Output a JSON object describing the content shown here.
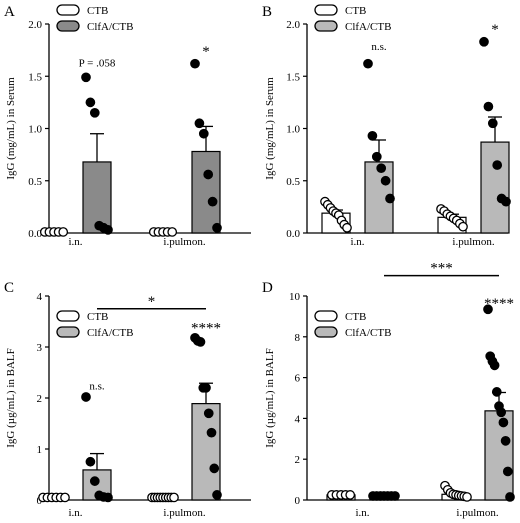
{
  "colors": {
    "ctb_fill": "#ffffff",
    "clfa_fill_A": "#8a8a8a",
    "clfa_fill_other": "#b9b9b9",
    "ink": "#000000"
  },
  "chart_data": [
    {
      "panel": "A",
      "type": "bar",
      "ylabel": "IgG (mg/mL) in Serum",
      "ylim": [
        0,
        2.0
      ],
      "yticks": [
        "0.0",
        "0.5",
        "1.0",
        "1.5",
        "2.0"
      ],
      "categories": [
        "i.n.",
        "i.pulmon."
      ],
      "legend": [
        "CTB",
        "ClfA/CTB"
      ],
      "series": [
        {
          "name": "CTB",
          "values": [
            0.0,
            0.0
          ],
          "sem": [
            0,
            0
          ],
          "points": [
            [
              0.01,
              0.01,
              0.01,
              0.01,
              0.01
            ],
            [
              0.01,
              0.01,
              0.01,
              0.01,
              0.01
            ]
          ]
        },
        {
          "name": "ClfA/CTB",
          "values": [
            0.68,
            0.78
          ],
          "sem": [
            0.27,
            0.24
          ],
          "points": [
            [
              1.49,
              1.25,
              1.15,
              0.07,
              0.05,
              0.03
            ],
            [
              1.62,
              1.05,
              0.95,
              0.56,
              0.3,
              0.05
            ]
          ]
        }
      ],
      "annotations": [
        {
          "text": "P = .058",
          "category": 0,
          "series": 1,
          "y": 1.63
        },
        {
          "text": "*",
          "category": 1,
          "series": 1,
          "y": 1.76
        }
      ]
    },
    {
      "panel": "B",
      "type": "bar",
      "ylabel": "IgG (mg/mL) in Serum",
      "ylim": [
        0,
        2.0
      ],
      "yticks": [
        "0.0",
        "0.5",
        "1.0",
        "1.5",
        "2.0"
      ],
      "categories": [
        "i.n.",
        "i.pulmon."
      ],
      "legend": [
        "CTB",
        "ClfA/CTB"
      ],
      "series": [
        {
          "name": "CTB",
          "values": [
            0.19,
            0.15
          ],
          "sem": [
            0.03,
            0.03
          ],
          "points": [
            [
              0.3,
              0.27,
              0.24,
              0.21,
              0.19,
              0.17,
              0.12,
              0.08,
              0.05
            ],
            [
              0.23,
              0.21,
              0.18,
              0.16,
              0.14,
              0.12,
              0.09,
              0.06
            ]
          ]
        },
        {
          "name": "ClfA/CTB",
          "values": [
            0.68,
            0.87
          ],
          "sem": [
            0.21,
            0.24
          ],
          "points": [
            [
              1.62,
              0.93,
              0.73,
              0.62,
              0.5,
              0.33
            ],
            [
              1.83,
              1.21,
              1.05,
              0.65,
              0.33,
              0.3
            ]
          ]
        }
      ],
      "annotations": [
        {
          "text": "n.s.",
          "category": 0,
          "series": 1,
          "y": 1.79
        },
        {
          "text": "*",
          "category": 1,
          "series": 1,
          "y": 1.97
        }
      ]
    },
    {
      "panel": "C",
      "type": "bar",
      "ylabel": "IgG (µg/mL) in BALF",
      "ylim": [
        0,
        4
      ],
      "yticks": [
        "0",
        "1",
        "2",
        "3",
        "4"
      ],
      "categories": [
        "i.n.",
        "i.pulmon."
      ],
      "legend": [
        "CTB",
        "ClfA/CTB"
      ],
      "series": [
        {
          "name": "CTB",
          "values": [
            0.05,
            0.05
          ],
          "sem": [
            0,
            0
          ],
          "points": [
            [
              0.05,
              0.05,
              0.05,
              0.05,
              0.05,
              0.05
            ],
            [
              0.05,
              0.05,
              0.05,
              0.05,
              0.05,
              0.05,
              0.05,
              0.05,
              0.05
            ]
          ]
        },
        {
          "name": "ClfA/CTB",
          "values": [
            0.59,
            1.89
          ],
          "sem": [
            0.32,
            0.4
          ],
          "points": [
            [
              2.02,
              0.75,
              0.37,
              0.09,
              0.06,
              0.05
            ],
            [
              3.18,
              3.12,
              3.1,
              2.2,
              2.2,
              1.7,
              1.32,
              0.62,
              0.1
            ]
          ]
        }
      ],
      "annotations": [
        {
          "text": "n.s.",
          "category": 0,
          "series": 1,
          "y": 2.25
        },
        {
          "text": "****",
          "category": 1,
          "series": 1,
          "y": 3.42
        }
      ],
      "bracket": {
        "from_category": 0,
        "to_category": 1,
        "series": 1,
        "y": 3.75,
        "text": "*"
      }
    },
    {
      "panel": "D",
      "type": "bar",
      "ylabel": "IgG (µg/mL) in BALF",
      "ylim": [
        0,
        10
      ],
      "yticks": [
        "0",
        "2",
        "4",
        "6",
        "8",
        "10"
      ],
      "categories": [
        "i.n.",
        "i.pulmon."
      ],
      "legend": [
        "CTB",
        "ClfA/CTB"
      ],
      "series": [
        {
          "name": "CTB",
          "values": [
            0.25,
            0.28
          ],
          "sem": [
            0,
            0.08
          ],
          "points": [
            [
              0.25,
              0.25,
              0.25,
              0.25,
              0.25
            ],
            [
              0.7,
              0.5,
              0.35,
              0.28,
              0.25,
              0.22,
              0.2,
              0.18,
              0.15
            ]
          ]
        },
        {
          "name": "ClfA/CTB",
          "values": [
            0.2,
            4.37
          ],
          "sem": [
            0,
            0.9
          ],
          "points": [
            [
              0.2,
              0.2,
              0.2,
              0.2,
              0.2,
              0.2,
              0.2
            ],
            [
              9.35,
              7.05,
              6.8,
              6.6,
              5.3,
              4.6,
              4.3,
              3.8,
              2.9,
              1.4,
              0.15
            ]
          ]
        }
      ],
      "annotations": [
        {
          "text": "****",
          "category": 1,
          "series": 1,
          "y": 9.75
        }
      ],
      "bracket": {
        "from_category": 0,
        "to_category": 1,
        "series": 1,
        "y": 11.0,
        "text": "***"
      }
    }
  ]
}
